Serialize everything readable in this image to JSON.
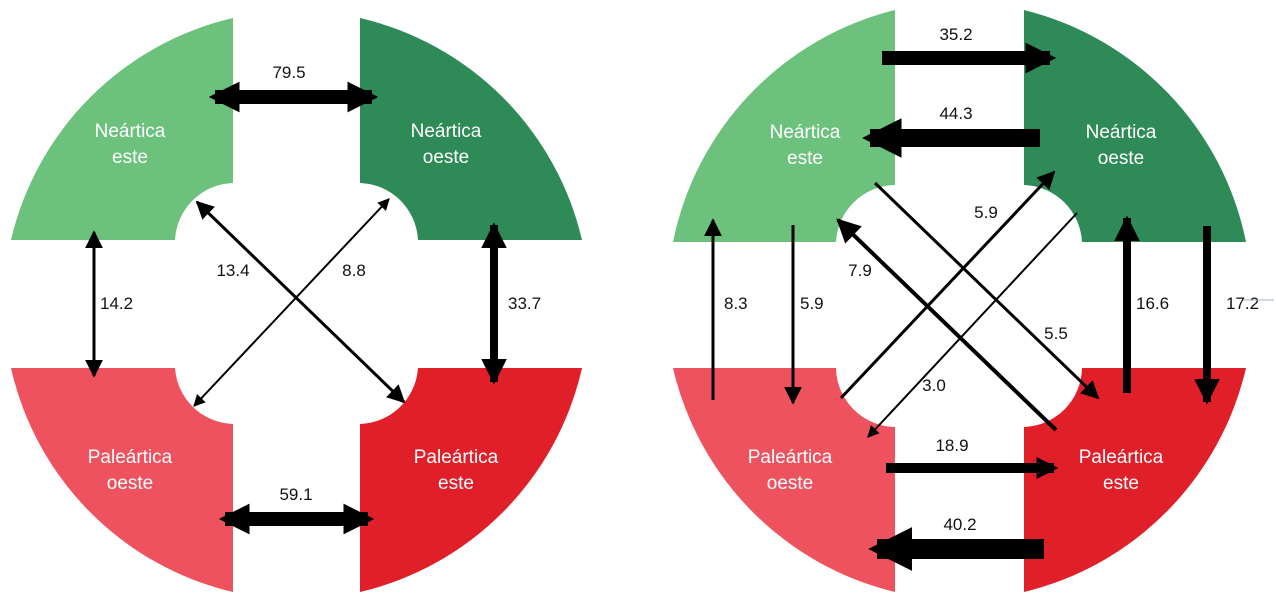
{
  "colors": {
    "nearctic_east": "#6cc17d",
    "nearctic_west": "#2e8b57",
    "palearctic_west": "#ef525f",
    "palearctic_east": "#e11f29",
    "arrow": "#000000",
    "label_text": "#ffffff"
  },
  "left_diagram": {
    "regions": {
      "ne_line1": "Neártica",
      "ne_line2": "este",
      "nw_line1": "Neártica",
      "nw_line2": "oeste",
      "pw_line1": "Paleártica",
      "pw_line2": "oeste",
      "pe_line1": "Paleártica",
      "pe_line2": "este"
    },
    "flows": {
      "top": "79.5",
      "bottom": "59.1",
      "left": "14.2",
      "right": "33.7",
      "diag_ne_pe": "13.4",
      "diag_nw_pw": "8.8"
    }
  },
  "right_diagram": {
    "regions": {
      "ne_line1": "Neártica",
      "ne_line2": "este",
      "nw_line1": "Neártica",
      "nw_line2": "oeste",
      "pw_line1": "Paleártica",
      "pw_line2": "oeste",
      "pe_line1": "Paleártica",
      "pe_line2": "este"
    },
    "flows": {
      "top_to_west": "35.2",
      "top_to_east": "44.3",
      "bottom_to_east": "18.9",
      "bottom_to_west": "40.2",
      "left_up": "8.3",
      "left_down": "5.9",
      "right_up": "16.6",
      "right_down": "17.2",
      "diag_pw_to_nw": "5.9",
      "diag_pe_to_ne": "7.9",
      "diag_ne_to_pe": "5.5",
      "diag_nw_to_pw": "3.0"
    }
  }
}
